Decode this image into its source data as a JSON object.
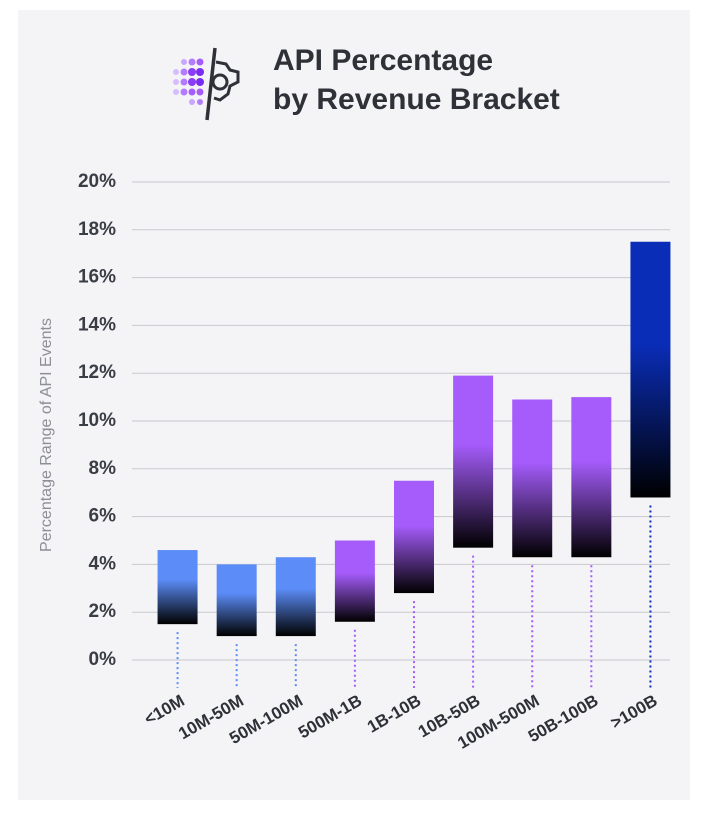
{
  "chart_data": {
    "type": "floating_bar",
    "title_lines": [
      "API Percentage",
      "by Revenue Bracket"
    ],
    "y_label": "Percentage Range  of API Events",
    "categories": [
      "<10M",
      "10M-50M",
      "50M-100M",
      "500M-1B",
      "1B-10B",
      "10B-50B",
      "100M-500M",
      "50B-100B",
      ">100B"
    ],
    "low": [
      1.5,
      1.0,
      1.0,
      1.6,
      2.8,
      4.7,
      4.3,
      4.3,
      6.8
    ],
    "high": [
      4.6,
      4.0,
      4.3,
      5.0,
      7.5,
      11.9,
      10.9,
      11.0,
      17.5
    ],
    "colors": [
      "#5b8cf7",
      "#5b8cf7",
      "#5b8cf7",
      "#a55cfb",
      "#a55cfb",
      "#a55cfb",
      "#a55cfb",
      "#a55cfb",
      "#0a2db8"
    ],
    "ylim": [
      0,
      20
    ],
    "yticks": [
      {
        "value": 0,
        "label": "0%"
      },
      {
        "value": 2,
        "label": "2%"
      },
      {
        "value": 4,
        "label": "4%"
      },
      {
        "value": 6,
        "label": "6%"
      },
      {
        "value": 8,
        "label": "8%"
      },
      {
        "value": 10,
        "label": "10%"
      },
      {
        "value": 12,
        "label": "12%"
      },
      {
        "value": 14,
        "label": "14%"
      },
      {
        "value": 16,
        "label": "16%"
      },
      {
        "value": 18,
        "label": "18%"
      },
      {
        "value": 20,
        "label": "20%"
      }
    ],
    "grid": true
  }
}
